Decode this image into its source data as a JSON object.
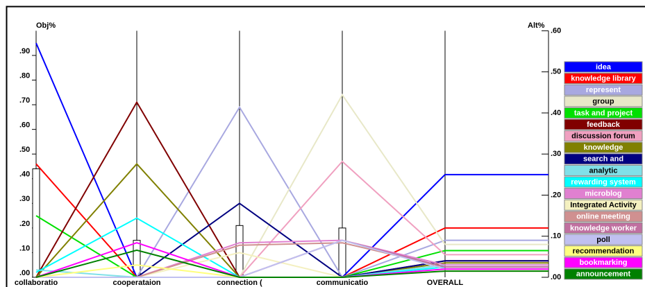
{
  "chart_data": {
    "type": "performance-sensitivity",
    "y_label": "Obj%",
    "y2_label": "Alt%",
    "categories": [
      "collaboratio",
      "cooperataion",
      "connection (",
      "communicatio",
      "OVERALL"
    ],
    "weights": [
      0.44,
      0.15,
      0.21,
      0.2
    ],
    "ylim": [
      0,
      1
    ],
    "yticks": [
      {
        "value": 0,
        "label": ".00"
      },
      {
        "value": 0.1,
        "label": ".10"
      },
      {
        "value": 0.2,
        "label": ".20"
      },
      {
        "value": 0.3,
        "label": ".30"
      },
      {
        "value": 0.4,
        "label": ".40"
      },
      {
        "value": 0.5,
        "label": ".50"
      },
      {
        "value": 0.6,
        "label": ".60"
      },
      {
        "value": 0.7,
        "label": ".70"
      },
      {
        "value": 0.8,
        "label": ".80"
      },
      {
        "value": 0.9,
        "label": ".90"
      }
    ],
    "y2lim": [
      0,
      0.6
    ],
    "y2ticks": [
      {
        "value": 0,
        "label": ".00"
      },
      {
        "value": 0.1,
        "label": ".10"
      },
      {
        "value": 0.2,
        "label": ".20"
      },
      {
        "value": 0.3,
        "label": ".30"
      },
      {
        "value": 0.4,
        "label": ".40"
      },
      {
        "value": 0.5,
        "label": ".50"
      },
      {
        "value": 0.6,
        "label": ".60"
      }
    ],
    "series": [
      {
        "name": "idea",
        "color": "#0000ff",
        "values": [
          0.95,
          0,
          0,
          0,
          0.25
        ]
      },
      {
        "name": "knowledge library",
        "color": "#ff0000",
        "values": [
          0.46,
          0,
          0,
          0,
          0.12
        ]
      },
      {
        "name": "represent",
        "color": "#a8a8e0",
        "values": [
          0,
          0,
          0.69,
          0,
          0.09
        ]
      },
      {
        "name": "group",
        "color": "#e8e8c8",
        "values": [
          0,
          0,
          0,
          0.74,
          0.08
        ]
      },
      {
        "name": "task and project",
        "color": "#00e000",
        "values": [
          0.25,
          0,
          0,
          0,
          0.065
        ]
      },
      {
        "name": "feedback",
        "color": "#800000",
        "values": [
          0,
          0.71,
          0,
          0,
          0.04
        ]
      },
      {
        "name": "discussion forum",
        "color": "#f0a0c0",
        "values": [
          0,
          0,
          0,
          0.47,
          0.055
        ]
      },
      {
        "name": "knowledge",
        "color": "#808000",
        "values": [
          0,
          0.46,
          0,
          0,
          0.035
        ]
      },
      {
        "name": "search and",
        "color": "#000080",
        "values": [
          0,
          0,
          0.3,
          0,
          0.04
        ]
      },
      {
        "name": "analytic",
        "color": "#80e0e8",
        "values": [
          0.03,
          0,
          0,
          0,
          0.03
        ]
      },
      {
        "name": "rewarding system",
        "color": "#00ffff",
        "values": [
          0.02,
          0.24,
          0,
          0,
          0.025
        ]
      },
      {
        "name": "microblog",
        "color": "#e080d0",
        "values": [
          0,
          0,
          0.14,
          0.15,
          0.03
        ]
      },
      {
        "name": "Integrated Activity",
        "color": "#f4f0c0",
        "values": [
          0,
          0,
          0.1,
          0,
          0.02
        ]
      },
      {
        "name": "online meeting",
        "color": "#d09090",
        "values": [
          0,
          0,
          0.13,
          0.14,
          0.025
        ]
      },
      {
        "name": "knowledge worker",
        "color": "#c070a0",
        "values": [
          0,
          0,
          0,
          0.15,
          0.025
        ]
      },
      {
        "name": "poll",
        "color": "#c0c0f0",
        "values": [
          0,
          0,
          0,
          0.15,
          0.02
        ]
      },
      {
        "name": "recommendation",
        "color": "#ffff80",
        "values": [
          0,
          0.05,
          0,
          0,
          0.015
        ]
      },
      {
        "name": "bookmarking",
        "color": "#ff00ff",
        "values": [
          0,
          0.14,
          0,
          0,
          0.02
        ]
      },
      {
        "name": "announcement",
        "color": "#008000",
        "values": [
          0,
          0.11,
          0,
          0,
          0.015
        ]
      }
    ]
  }
}
